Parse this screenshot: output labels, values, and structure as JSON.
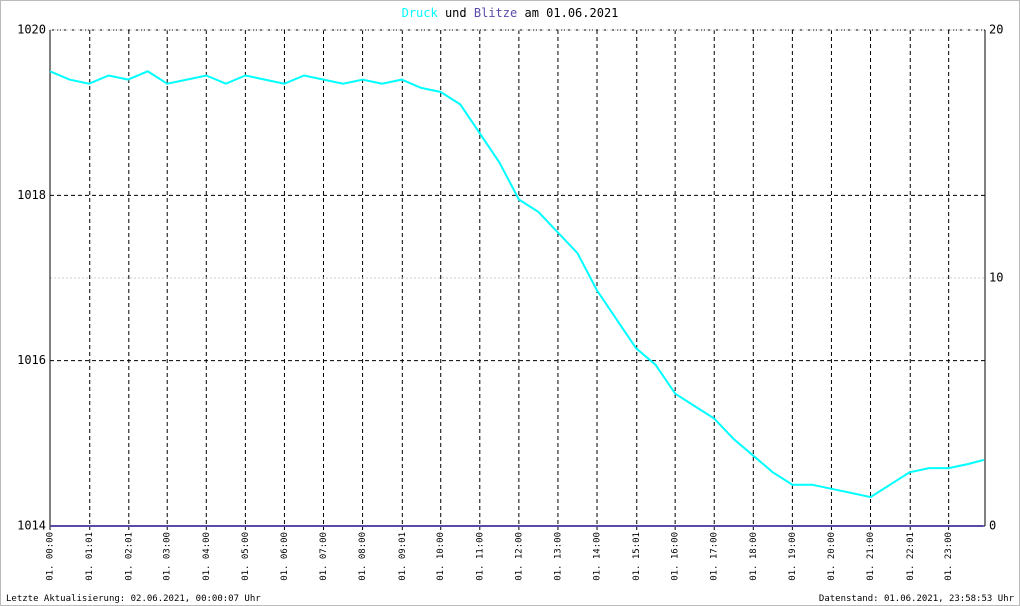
{
  "chart_data": {
    "type": "line",
    "title": [
      "Druck",
      "und",
      "Blitze",
      "am 01.06.2021"
    ],
    "x": [
      0,
      0.5,
      1,
      1.5,
      2,
      2.5,
      3,
      3.5,
      4,
      4.5,
      5,
      5.5,
      6,
      6.5,
      7,
      7.5,
      8,
      8.5,
      9,
      9.5,
      10,
      10.5,
      11,
      11.5,
      12,
      12.5,
      13,
      13.5,
      14,
      14.5,
      15,
      15.5,
      16,
      16.5,
      17,
      17.5,
      18,
      18.5,
      19,
      19.5,
      20,
      20.5,
      21,
      21.5,
      22,
      22.5,
      23,
      23.5,
      23.9
    ],
    "series": [
      {
        "name": "Druck",
        "color": "#00ffff",
        "values": [
          1019.5,
          1019.4,
          1019.35,
          1019.45,
          1019.4,
          1019.5,
          1019.35,
          1019.4,
          1019.45,
          1019.35,
          1019.45,
          1019.4,
          1019.35,
          1019.45,
          1019.4,
          1019.35,
          1019.4,
          1019.35,
          1019.4,
          1019.3,
          1019.25,
          1019.1,
          1018.75,
          1018.4,
          1017.95,
          1017.8,
          1017.55,
          1017.3,
          1016.85,
          1016.5,
          1016.15,
          1015.95,
          1015.6,
          1015.45,
          1015.3,
          1015.05,
          1014.85,
          1014.65,
          1014.5,
          1014.5,
          1014.45,
          1014.4,
          1014.35,
          1014.5,
          1014.65,
          1014.7,
          1014.7,
          1014.75,
          1014.8
        ]
      },
      {
        "name": "Blitze",
        "color": "#5a4aa8",
        "axis": "y2",
        "values": [
          0,
          0,
          0,
          0,
          0,
          0,
          0,
          0,
          0,
          0,
          0,
          0,
          0,
          0,
          0,
          0,
          0,
          0,
          0,
          0,
          0,
          0,
          0,
          0,
          0,
          0,
          0,
          0,
          0,
          0,
          0,
          0,
          0,
          0,
          0,
          0,
          0,
          0,
          0,
          0,
          0,
          0,
          0,
          0,
          0,
          0,
          0,
          0,
          0
        ]
      }
    ],
    "xlim": [
      0,
      23.93
    ],
    "xticks": [
      {
        "value": 0,
        "label": "01. 00:00"
      },
      {
        "value": 1.017,
        "label": "01. 01:01"
      },
      {
        "value": 2.017,
        "label": "01. 02:01"
      },
      {
        "value": 3,
        "label": "01. 03:00"
      },
      {
        "value": 4,
        "label": "01. 04:00"
      },
      {
        "value": 5,
        "label": "01. 05:00"
      },
      {
        "value": 6,
        "label": "01. 06:00"
      },
      {
        "value": 7,
        "label": "01. 07:00"
      },
      {
        "value": 8,
        "label": "01. 08:00"
      },
      {
        "value": 9.017,
        "label": "01. 09:01"
      },
      {
        "value": 10,
        "label": "01. 10:00"
      },
      {
        "value": 11,
        "label": "01. 11:00"
      },
      {
        "value": 12,
        "label": "01. 12:00"
      },
      {
        "value": 13,
        "label": "01. 13:00"
      },
      {
        "value": 14,
        "label": "01. 14:00"
      },
      {
        "value": 15.017,
        "label": "01. 15:01"
      },
      {
        "value": 16,
        "label": "01. 16:00"
      },
      {
        "value": 17,
        "label": "01. 17:00"
      },
      {
        "value": 18,
        "label": "01. 18:00"
      },
      {
        "value": 19,
        "label": "01. 19:00"
      },
      {
        "value": 20,
        "label": "01. 20:00"
      },
      {
        "value": 21,
        "label": "01. 21:00"
      },
      {
        "value": 22.017,
        "label": "01. 22:01"
      },
      {
        "value": 23,
        "label": "01. 23:00"
      }
    ],
    "ylim": [
      1014,
      1020
    ],
    "yticks": [
      1014,
      1016,
      1018,
      1020
    ],
    "y2lim": [
      0,
      20
    ],
    "y2ticks": [
      0,
      10,
      20
    ],
    "grid": true,
    "footer_left": "Letzte Aktualisierung: 02.06.2021, 00:00:07 Uhr",
    "footer_right": "Datenstand: 01.06.2021, 23:58:53 Uhr"
  }
}
